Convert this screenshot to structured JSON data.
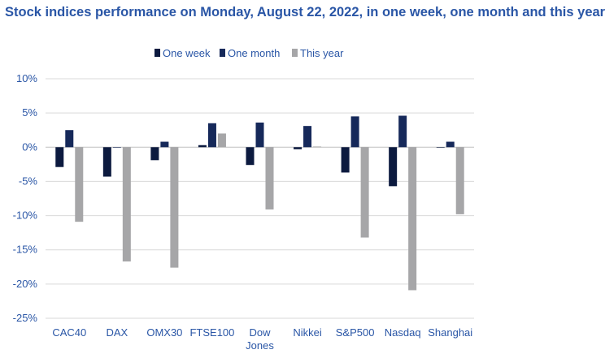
{
  "chart_data": {
    "type": "bar",
    "title": "Stock indices performance on Monday, August 22, 2022, in one week, one month and this year",
    "categories": [
      "CAC40",
      "DAX",
      "OMX30",
      "FTSE100",
      "Dow Jones",
      "Nikkei",
      "S&P500",
      "Nasdaq",
      "Shanghai"
    ],
    "series": [
      {
        "name": "One week",
        "color": "#0c1a3f",
        "values": [
          -2.9,
          -4.3,
          -1.9,
          0.3,
          -2.6,
          -0.3,
          -3.7,
          -5.7,
          0.0
        ]
      },
      {
        "name": "One month",
        "color": "#16295a",
        "values": [
          2.5,
          0.0,
          0.8,
          3.5,
          3.6,
          3.1,
          4.5,
          4.6,
          0.8
        ]
      },
      {
        "name": "This year",
        "color": "#a6a6a8",
        "values": [
          -10.9,
          -16.7,
          -17.6,
          2.0,
          -9.1,
          0.1,
          -13.2,
          -20.9,
          -9.8
        ]
      }
    ],
    "ylim": [
      -25,
      10
    ],
    "yticks": [
      -25,
      -20,
      -15,
      -10,
      -5,
      0,
      5,
      10
    ],
    "ytick_labels": [
      "-25%",
      "-20%",
      "-15%",
      "-10%",
      "-5%",
      "0%",
      "5%",
      "10%"
    ],
    "legend_position": "top-center",
    "grid": true,
    "xlabel": "",
    "ylabel": ""
  }
}
